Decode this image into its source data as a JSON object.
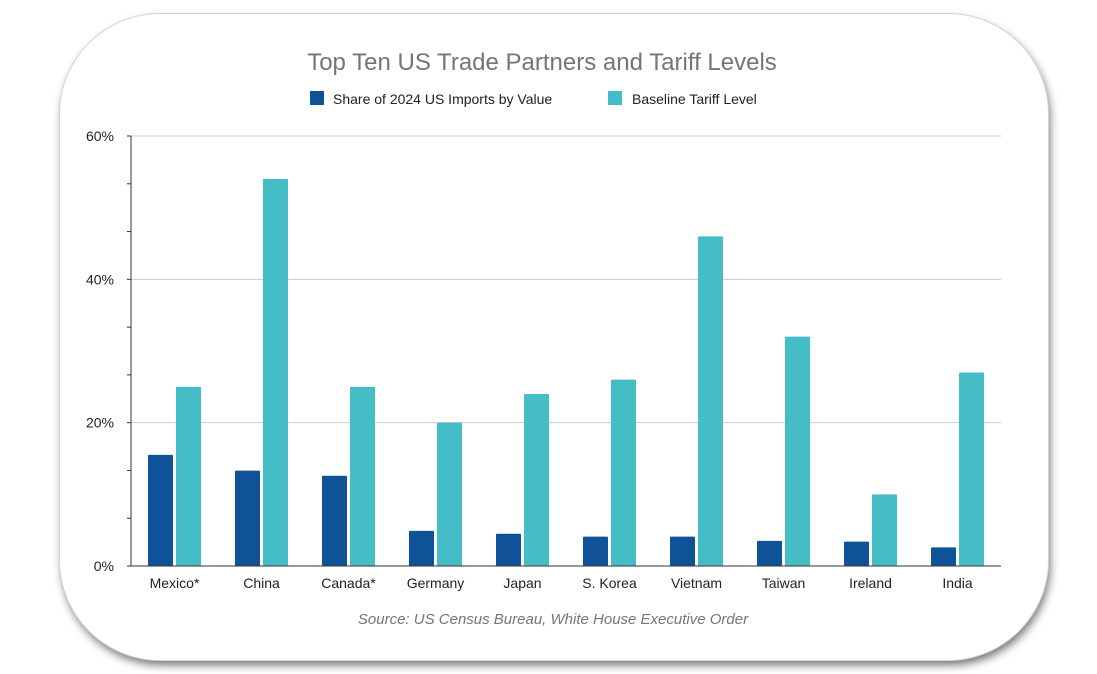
{
  "chart_data": {
    "type": "bar",
    "title": "Top Ten US Trade Partners and Tariff Levels",
    "source": "Source: US Census Bureau, White House Executive Order",
    "categories": [
      "Mexico*",
      "China",
      "Canada*",
      "Germany",
      "Japan",
      "S. Korea",
      "Vietnam",
      "Taiwan",
      "Ireland",
      "India"
    ],
    "series": [
      {
        "name": "Share of 2024 US Imports by Value",
        "color": "#0f5297",
        "values": [
          15.5,
          13.3,
          12.6,
          4.9,
          4.5,
          4.1,
          4.1,
          3.5,
          3.4,
          2.6
        ]
      },
      {
        "name": "Baseline Tariff Level",
        "color": "#45bdc6",
        "values": [
          25,
          54,
          25,
          20,
          24,
          26,
          46,
          32,
          10,
          27
        ]
      }
    ],
    "ylim": [
      0,
      60
    ],
    "yticks": [
      "0%",
      "20%",
      "40%",
      "60%"
    ],
    "xlabel": "",
    "ylabel": "",
    "grid": true,
    "legend_position": "top"
  }
}
